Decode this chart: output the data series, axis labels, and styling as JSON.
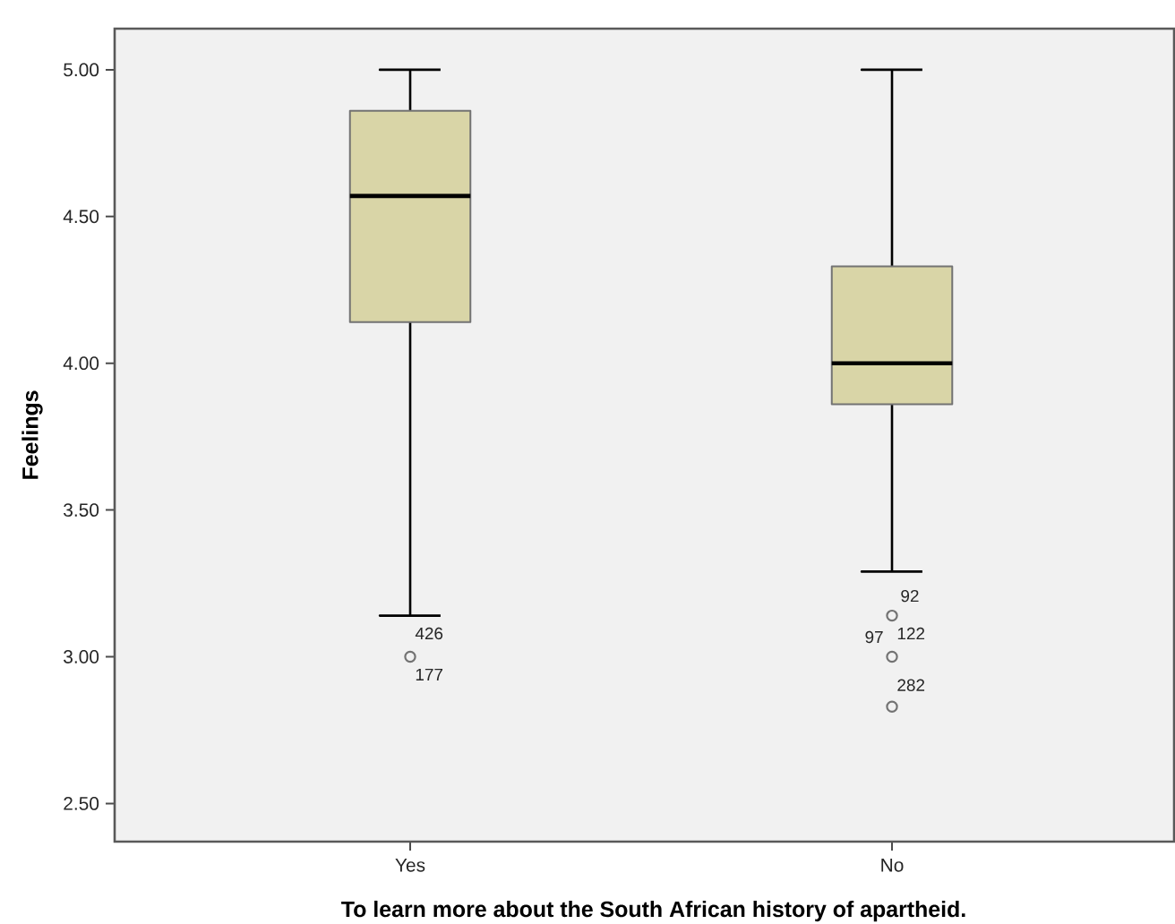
{
  "chart_data": {
    "type": "box",
    "xlabel": "To learn more about the South African history of apartheid.",
    "ylabel": "Feelings",
    "categories": [
      "Yes",
      "No"
    ],
    "series": [
      {
        "color": "#d9d5a7",
        "boxes": [
          {
            "low": 3.14,
            "q1": 4.14,
            "median": 4.57,
            "q3": 4.86,
            "high": 5.0,
            "outliers": [
              3.0
            ]
          },
          {
            "low": 3.29,
            "q1": 3.86,
            "median": 4.0,
            "q3": 4.33,
            "high": 5.0,
            "outliers": [
              3.14,
              3.0,
              2.83
            ]
          }
        ]
      }
    ],
    "ylim": [
      2.37,
      5.14
    ],
    "yticks": [
      {
        "value": 2.5,
        "label": "2.50"
      },
      {
        "value": 3.0,
        "label": "3.00"
      },
      {
        "value": 3.5,
        "label": "3.50"
      },
      {
        "value": 4.0,
        "label": "4.00"
      },
      {
        "value": 4.5,
        "label": "4.50"
      },
      {
        "value": 5.0,
        "label": "5.00"
      }
    ],
    "annotations": [
      "426",
      "177",
      "92",
      "97",
      "122",
      "282"
    ]
  }
}
